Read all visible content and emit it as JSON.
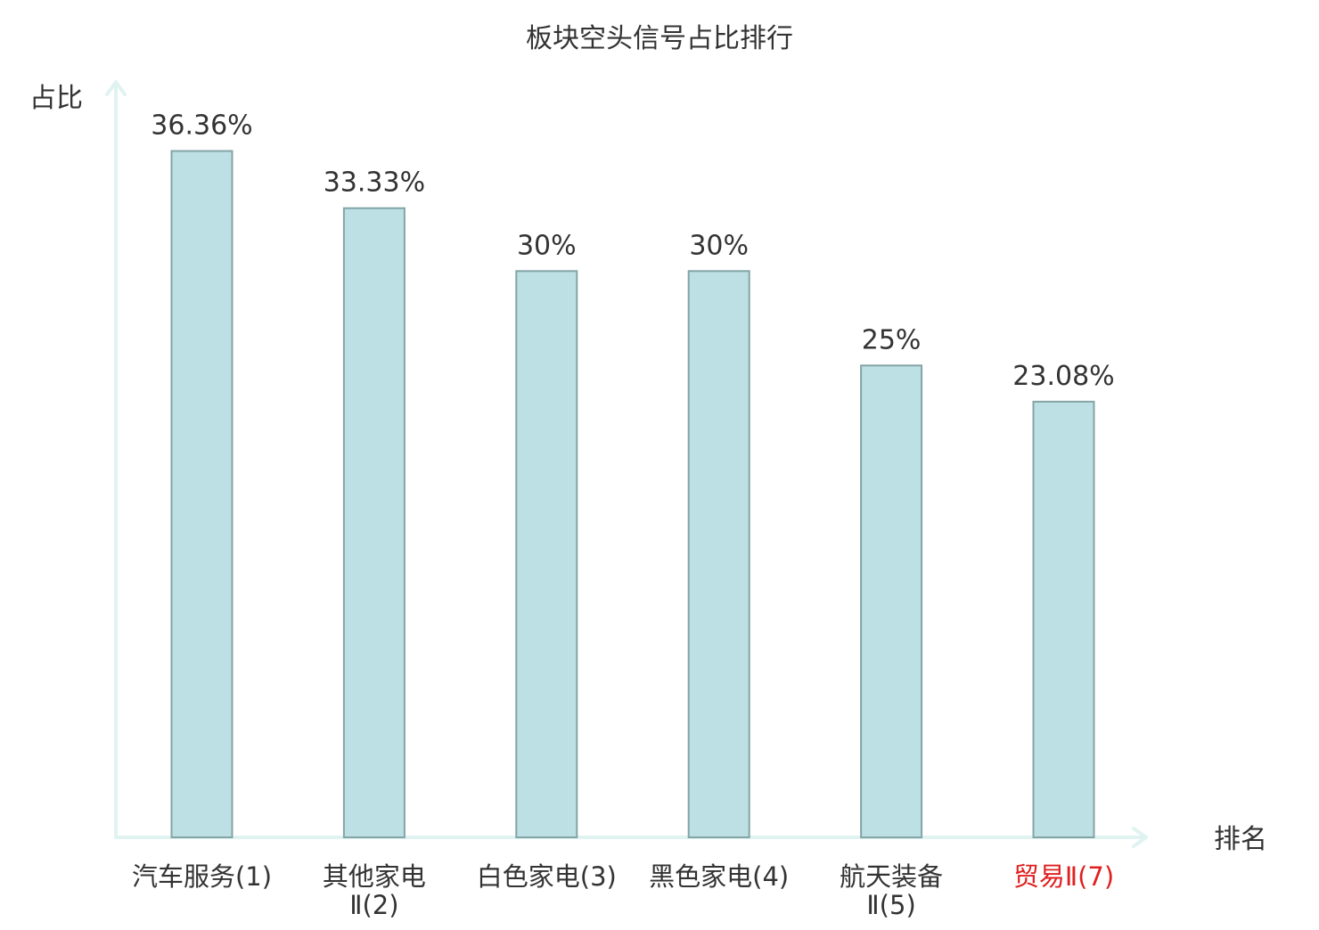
{
  "chart_data": {
    "type": "bar",
    "title": "板块空头信号占比排行",
    "ylabel": "占比",
    "xlabel": "排名",
    "ylim": [
      0,
      40
    ],
    "grid": false,
    "categories": [
      [
        "汽车服务(1)"
      ],
      [
        "其他家电",
        "Ⅱ(2)"
      ],
      [
        "白色家电(3)"
      ],
      [
        "黑色家电(4)"
      ],
      [
        "航天装备",
        "Ⅱ(5)"
      ],
      [
        "贸易Ⅱ(7)"
      ]
    ],
    "values": [
      36.36,
      33.33,
      30,
      30,
      25,
      23.08
    ],
    "value_labels": [
      "36.36%",
      "33.33%",
      "30%",
      "30%",
      "25%",
      "23.08%"
    ],
    "highlight_index": 5,
    "colors": {
      "bar_fill": "#bce0e3",
      "bar_stroke": "#84a4a6",
      "axis": "#e0f3f1",
      "text": "#333333",
      "highlight_text": "#e01f1f"
    }
  }
}
